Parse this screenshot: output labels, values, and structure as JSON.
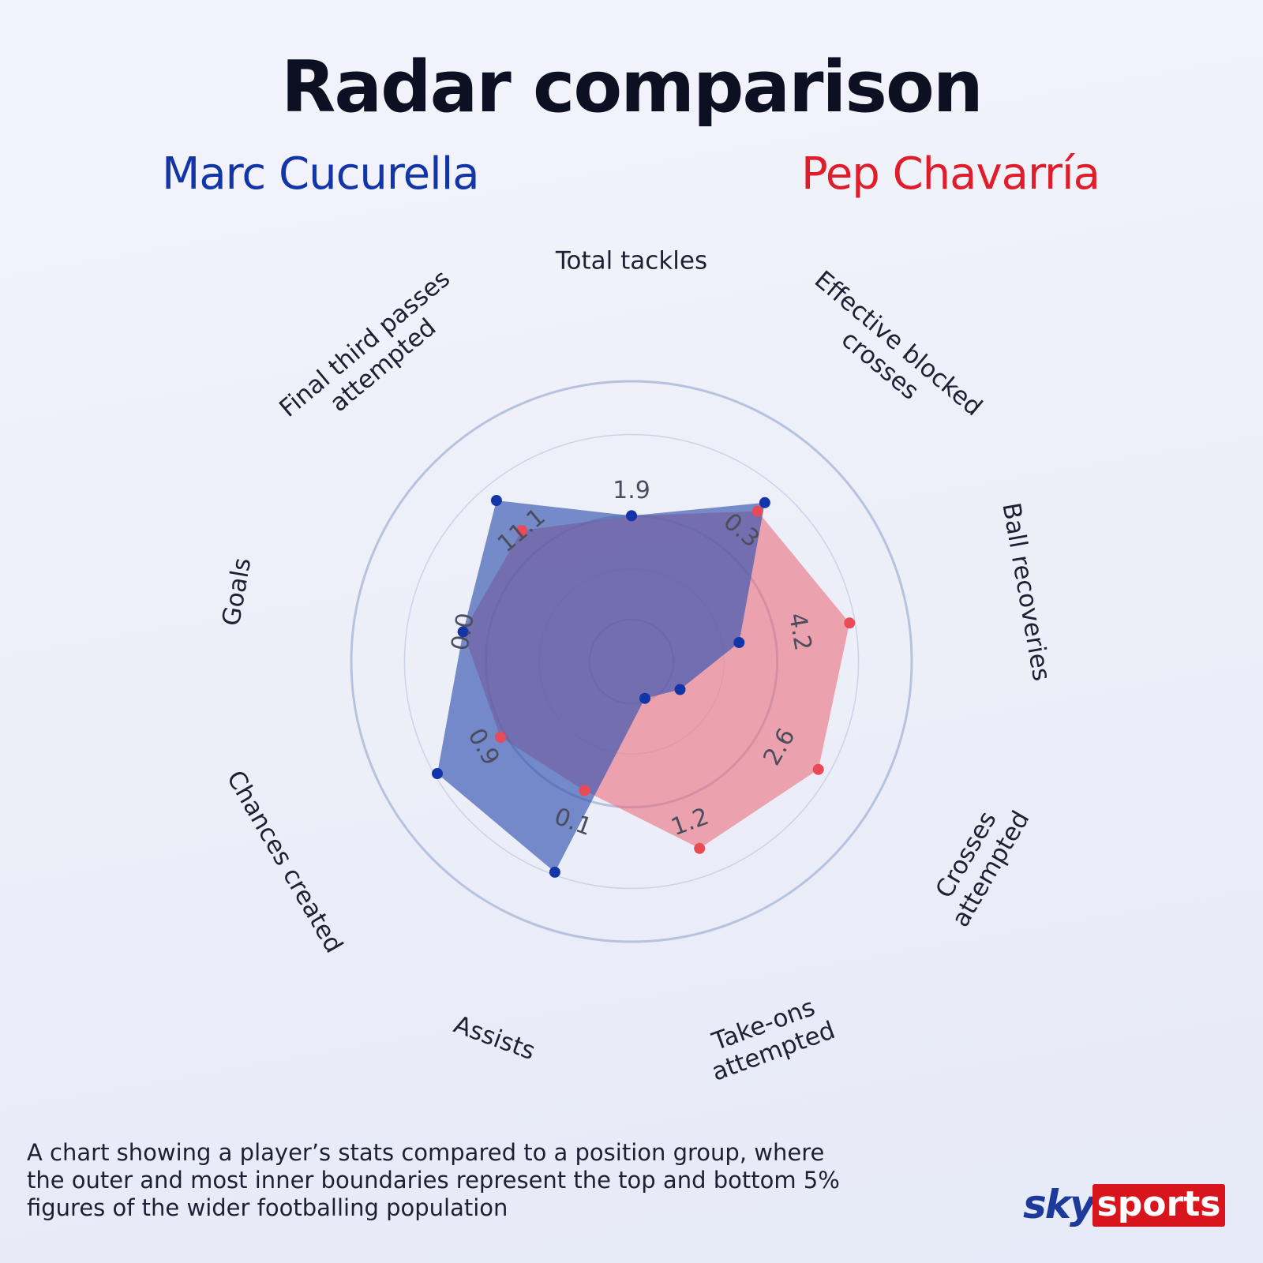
{
  "title": "Radar comparison",
  "players": [
    {
      "name": "Marc Cucurella",
      "color": "#1236a8"
    },
    {
      "name": "Pep Chavarría",
      "color": "#e01e2b"
    }
  ],
  "caption": "A chart showing a player’s stats compared to a position group,  where the outer and most inner boundaries represent the top  and bottom 5% figures of the wider footballing population",
  "logo": {
    "sky": "sky",
    "sports": "sports",
    "sky_color": "#1d3a9a",
    "sports_bg": "#d8141d"
  },
  "chart_data": {
    "type": "radar",
    "title": "Radar comparison",
    "axes": [
      {
        "label": "Total tackles",
        "lines": [
          "Total tackles"
        ]
      },
      {
        "label": "Effective blocked crosses",
        "lines": [
          "Effective blocked",
          "crosses"
        ]
      },
      {
        "label": "Ball recoveries",
        "lines": [
          "Ball recoveries"
        ]
      },
      {
        "label": "Crosses attempted",
        "lines": [
          "Crosses",
          "attempted"
        ]
      },
      {
        "label": "Take-ons attempted",
        "lines": [
          "Take-ons",
          "attempted"
        ]
      },
      {
        "label": "Assists",
        "lines": [
          "Assists"
        ]
      },
      {
        "label": "Chances created",
        "lines": [
          "Chances created"
        ]
      },
      {
        "label": "Goals",
        "lines": [
          "Goals"
        ]
      },
      {
        "label": "Final third passes attempted",
        "lines": [
          "Final third passes",
          "attempted"
        ]
      }
    ],
    "scale_labels": [
      "1.9",
      "0.3",
      "4.2",
      "2.6",
      "1.2",
      "0.1",
      "0.9",
      "0.0",
      "11.1"
    ],
    "series": [
      {
        "name": "Marc Cucurella",
        "color": "#1236a8",
        "fill": "rgba(51,83,175,0.65)",
        "values": [
          0.52,
          0.74,
          0.39,
          0.2,
          0.14,
          0.8,
          0.8,
          0.61,
          0.75
        ]
      },
      {
        "name": "Pep Chavarría",
        "color": "#e84a58",
        "fill": "rgba(236,106,120,0.58)",
        "values": [
          0.52,
          0.7,
          0.79,
          0.77,
          0.71,
          0.49,
          0.54,
          0.61,
          0.61
        ]
      }
    ],
    "rings": 5,
    "grid": true,
    "legend": "top"
  }
}
